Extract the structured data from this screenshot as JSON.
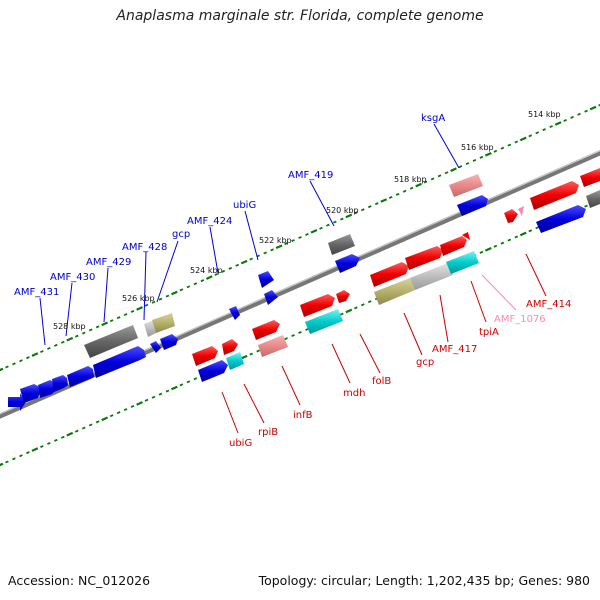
{
  "title": "Anaplasma marginale str. Florida, complete genome",
  "accession": "Accession: NC_012026",
  "summary": "Topology: circular; Length: 1,202,435 bp; Genes: 980",
  "colors": {
    "backbone": "#707070",
    "tick": "#0a7a0a",
    "forward_gene": "#0000dd",
    "reverse_gene": "#ee0000",
    "pseudogene": "#e88a8a",
    "rrna_like": "#00cccc",
    "olive": "#b5b06a",
    "grey": "#666666",
    "light_grey": "#bdbdbd",
    "pink_label": "#f28cb4"
  },
  "ruler_labels": [
    "514 kbp",
    "516 kbp",
    "518 kbp",
    "520 kbp",
    "522 kbp",
    "524 kbp",
    "526 kbp",
    "528 kbp"
  ],
  "forward_labels": [
    "ksgA",
    "AMF_419",
    "ubiG",
    "AMF_424",
    "gcp",
    "AMF_428",
    "AMF_429",
    "AMF_430",
    "AMF_431"
  ],
  "reverse_labels": [
    "AMF_414",
    "AMF_1076",
    "tpiA",
    "AMF_417",
    "gcp",
    "folB",
    "mdh",
    "infB",
    "rpiB",
    "ubiG"
  ]
}
